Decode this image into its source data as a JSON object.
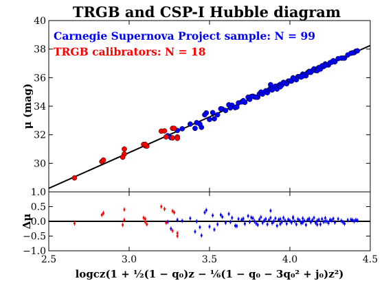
{
  "colors": {
    "csp": "#0000ff",
    "trgb": "#ff0000",
    "line": "#000000"
  },
  "chart_data": {
    "type": "scatter",
    "title": "TRGB and CSP-I Hubble diagram",
    "xlabel": "logcz(1 + ½(1 − q₀)z − ⅙(1 − q₀ − 3q₀² + j₀)z²)",
    "xlim": [
      2.5,
      4.5
    ],
    "x_ticks": [
      2.5,
      3.0,
      3.5,
      4.0,
      4.5
    ],
    "x_tick_labels": [
      "2.5",
      "3.0",
      "3.5",
      "4.0",
      "4.5"
    ],
    "panels": {
      "main": {
        "ylabel": "μ (mag)",
        "ylim": [
          28,
          40
        ],
        "y_ticks": [
          30,
          32,
          34,
          36,
          38,
          40
        ],
        "y_tick_labels": [
          "30",
          "32",
          "34",
          "36",
          "38",
          "40"
        ],
        "fit_line": {
          "x": [
            2.5,
            4.5
          ],
          "y": [
            28.25,
            38.25
          ]
        }
      },
      "residual": {
        "ylabel": "Δμ",
        "ylim": [
          -1.0,
          1.0
        ],
        "y_ticks": [
          -1.0,
          -0.5,
          0.0,
          0.5,
          1.0
        ],
        "y_tick_labels": [
          "−1.0",
          "−0.5",
          "0.0",
          "0.5",
          "1.0"
        ],
        "zero_line": 0.0
      }
    },
    "legend": {
      "placement": "top-left",
      "entries": [
        {
          "label": "Carnegie Supernova Project sample: N = 99",
          "series": "CSP"
        },
        {
          "label": "TRGB calibrators: N = 18",
          "series": "TRGB"
        }
      ]
    },
    "series": [
      {
        "key": "TRGB",
        "color": "#ff0000",
        "x": [
          2.66,
          2.83,
          2.84,
          2.97,
          2.97,
          3.09,
          3.1,
          3.11,
          3.2,
          3.23,
          3.27,
          3.27,
          3.28,
          3.3,
          3.3,
          2.96,
          3.1,
          3.22
        ],
        "dmu": [
          -0.07,
          0.22,
          0.28,
          0.4,
          0.05,
          0.12,
          -0.02,
          -0.1,
          0.5,
          -0.05,
          -0.32,
          0.35,
          0.3,
          -0.4,
          -0.5,
          -0.12,
          0.08,
          0.42
        ]
      },
      {
        "key": "CSP",
        "color": "#0000ff",
        "x": [
          3.24,
          3.3,
          3.38,
          3.41,
          3.42,
          3.45,
          3.48,
          3.5,
          3.52,
          3.55,
          3.58,
          3.6,
          3.62,
          3.64,
          3.66,
          3.68,
          3.7,
          3.72,
          3.74,
          3.75,
          3.77,
          3.78,
          3.8,
          3.81,
          3.82,
          3.83,
          3.84,
          3.85,
          3.86,
          3.87,
          3.88,
          3.89,
          3.9,
          3.91,
          3.92,
          3.93,
          3.94,
          3.95,
          3.96,
          3.97,
          3.98,
          3.99,
          4.0,
          4.01,
          4.02,
          4.03,
          4.04,
          4.05,
          4.06,
          4.07,
          4.08,
          4.09,
          4.1,
          4.11,
          4.12,
          4.13,
          4.14,
          4.15,
          4.16,
          4.17,
          4.18,
          4.19,
          4.2,
          4.21,
          4.22,
          4.23,
          4.24,
          4.25,
          4.26,
          4.28,
          4.3,
          4.32,
          4.34,
          4.36,
          4.38,
          4.4,
          4.41,
          4.42,
          3.26,
          3.33,
          3.44,
          3.47,
          3.53,
          3.57,
          3.63,
          3.67,
          3.71,
          3.76,
          3.79,
          3.88,
          3.94,
          4.02,
          4.08,
          4.12,
          4.17,
          4.22,
          4.27,
          4.33,
          4.39
        ],
        "dmu": [
          -0.02,
          0.05,
          0.1,
          -0.35,
          0.0,
          -0.48,
          0.38,
          -0.18,
          0.2,
          -0.1,
          0.15,
          -0.05,
          0.25,
          0.12,
          -0.15,
          0.08,
          0.05,
          -0.08,
          0.18,
          -0.02,
          0.1,
          0.0,
          -0.12,
          0.06,
          0.14,
          -0.05,
          0.02,
          0.08,
          -0.1,
          0.04,
          0.12,
          -0.06,
          0.0,
          0.1,
          -0.15,
          0.05,
          0.08,
          -0.02,
          0.12,
          0.03,
          -0.08,
          0.06,
          0.02,
          -0.04,
          0.14,
          0.0,
          -0.1,
          0.07,
          0.03,
          -0.06,
          0.1,
          0.02,
          -0.12,
          0.05,
          0.09,
          -0.03,
          0.04,
          0.12,
          -0.05,
          0.02,
          0.06,
          -0.1,
          0.08,
          -0.02,
          0.11,
          0.0,
          -0.06,
          0.05,
          0.03,
          -0.04,
          0.08,
          0.02,
          -0.08,
          0.04,
          0.06,
          0.0,
          0.05,
          0.03,
          -0.25,
          0.02,
          -0.2,
          0.3,
          -0.28,
          0.22,
          -0.02,
          -0.16,
          0.09,
          0.13,
          -0.07,
          0.36,
          -0.09,
          0.11,
          -0.04,
          0.07,
          -0.11,
          0.01,
          0.09,
          -0.03,
          0.04
        ]
      }
    ]
  }
}
